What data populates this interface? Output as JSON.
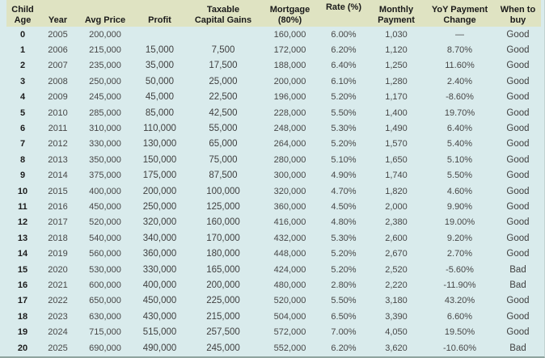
{
  "colors": {
    "header_background": "#dfe3c2",
    "body_background": "#d9ebec",
    "header_text": "#1a1a1a",
    "body_text": "#474747",
    "bottom_rule": "#8fa49f"
  },
  "table": {
    "columns": [
      {
        "id": "child_age",
        "label": "Child\nAge"
      },
      {
        "id": "year",
        "label": "Year"
      },
      {
        "id": "avg_price",
        "label": "Avg Price"
      },
      {
        "id": "profit",
        "label": "Profit"
      },
      {
        "id": "taxable_capital_gains",
        "label": "Taxable\nCapital Gains"
      },
      {
        "id": "mortgage_80",
        "label": "Mortgage\n(80%)"
      },
      {
        "id": "rate_pct",
        "label": "Rate (%)"
      },
      {
        "id": "monthly_payment",
        "label": "Monthly\nPayment"
      },
      {
        "id": "yoy_payment_change",
        "label": "YoY Payment\nChange"
      },
      {
        "id": "when_to_buy",
        "label": "When to\nbuy"
      }
    ],
    "rows": [
      [
        "0",
        "2005",
        "200,000",
        "",
        "",
        "160,000",
        "6.00%",
        "1,030",
        "—",
        "Good"
      ],
      [
        "1",
        "2006",
        "215,000",
        "15,000",
        "7,500",
        "172,000",
        "6.20%",
        "1,120",
        "8.70%",
        "Good"
      ],
      [
        "2",
        "2007",
        "235,000",
        "35,000",
        "17,500",
        "188,000",
        "6.40%",
        "1,250",
        "11.60%",
        "Good"
      ],
      [
        "3",
        "2008",
        "250,000",
        "50,000",
        "25,000",
        "200,000",
        "6.10%",
        "1,280",
        "2.40%",
        "Good"
      ],
      [
        "4",
        "2009",
        "245,000",
        "45,000",
        "22,500",
        "196,000",
        "5.20%",
        "1,170",
        "-8.60%",
        "Good"
      ],
      [
        "5",
        "2010",
        "285,000",
        "85,000",
        "42,500",
        "228,000",
        "5.50%",
        "1,400",
        "19.70%",
        "Good"
      ],
      [
        "6",
        "2011",
        "310,000",
        "110,000",
        "55,000",
        "248,000",
        "5.30%",
        "1,490",
        "6.40%",
        "Good"
      ],
      [
        "7",
        "2012",
        "330,000",
        "130,000",
        "65,000",
        "264,000",
        "5.20%",
        "1,570",
        "5.40%",
        "Good"
      ],
      [
        "8",
        "2013",
        "350,000",
        "150,000",
        "75,000",
        "280,000",
        "5.10%",
        "1,650",
        "5.10%",
        "Good"
      ],
      [
        "9",
        "2014",
        "375,000",
        "175,000",
        "87,500",
        "300,000",
        "4.90%",
        "1,740",
        "5.50%",
        "Good"
      ],
      [
        "10",
        "2015",
        "400,000",
        "200,000",
        "100,000",
        "320,000",
        "4.70%",
        "1,820",
        "4.60%",
        "Good"
      ],
      [
        "11",
        "2016",
        "450,000",
        "250,000",
        "125,000",
        "360,000",
        "4.50%",
        "2,000",
        "9.90%",
        "Good"
      ],
      [
        "12",
        "2017",
        "520,000",
        "320,000",
        "160,000",
        "416,000",
        "4.80%",
        "2,380",
        "19.00%",
        "Good"
      ],
      [
        "13",
        "2018",
        "540,000",
        "340,000",
        "170,000",
        "432,000",
        "5.30%",
        "2,600",
        "9.20%",
        "Good"
      ],
      [
        "14",
        "2019",
        "560,000",
        "360,000",
        "180,000",
        "448,000",
        "5.20%",
        "2,670",
        "2.70%",
        "Good"
      ],
      [
        "15",
        "2020",
        "530,000",
        "330,000",
        "165,000",
        "424,000",
        "5.20%",
        "2,520",
        "-5.60%",
        "Bad"
      ],
      [
        "16",
        "2021",
        "600,000",
        "400,000",
        "200,000",
        "480,000",
        "2.80%",
        "2,220",
        "-11.90%",
        "Bad"
      ],
      [
        "17",
        "2022",
        "650,000",
        "450,000",
        "225,000",
        "520,000",
        "5.50%",
        "3,180",
        "43.20%",
        "Good"
      ],
      [
        "18",
        "2023",
        "630,000",
        "430,000",
        "215,000",
        "504,000",
        "6.50%",
        "3,390",
        "6.60%",
        "Good"
      ],
      [
        "19",
        "2024",
        "715,000",
        "515,000",
        "257,500",
        "572,000",
        "7.00%",
        "4,050",
        "19.50%",
        "Good"
      ],
      [
        "20",
        "2025",
        "690,000",
        "490,000",
        "245,000",
        "552,000",
        "6.20%",
        "3,620",
        "-10.60%",
        "Bad"
      ]
    ]
  }
}
